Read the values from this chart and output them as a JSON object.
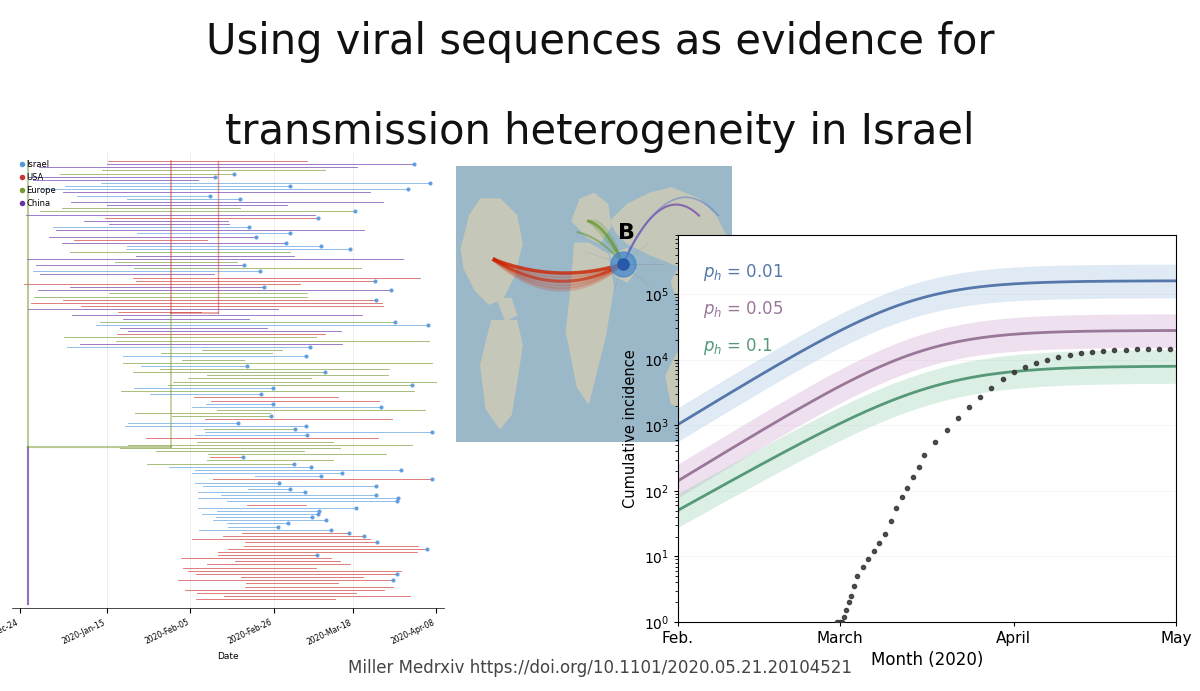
{
  "title_line1": "Using viral sequences as evidence for",
  "title_line2": "transmission heterogeneity in Israel",
  "title_fontsize": 30,
  "title_color": "#111111",
  "background_color": "#ffffff",
  "footer_text": "Miller Medrxiv https://doi.org/10.1101/2020.05.21.20104521",
  "footer_fontsize": 12,
  "footer_color": "#444444",
  "panel_B_label": "B",
  "ylabel": "Cumulative incidence",
  "xlabel": "Month (2020)",
  "xtick_labels": [
    "Feb.",
    "March",
    "April",
    "May"
  ],
  "line_colors": [
    "#5577aa",
    "#997799",
    "#559977"
  ],
  "fill_colors": [
    "#99bbdd",
    "#cc99cc",
    "#88ccaa"
  ],
  "dot_color": "#333333",
  "phylo_legend": [
    "Israel",
    "USA",
    "Europe",
    "China"
  ],
  "phylo_legend_colors": [
    "#5599dd",
    "#cc3333",
    "#779933",
    "#6633aa"
  ],
  "map_bg": "#9ab8c8",
  "map_land": "#c8c8b8"
}
